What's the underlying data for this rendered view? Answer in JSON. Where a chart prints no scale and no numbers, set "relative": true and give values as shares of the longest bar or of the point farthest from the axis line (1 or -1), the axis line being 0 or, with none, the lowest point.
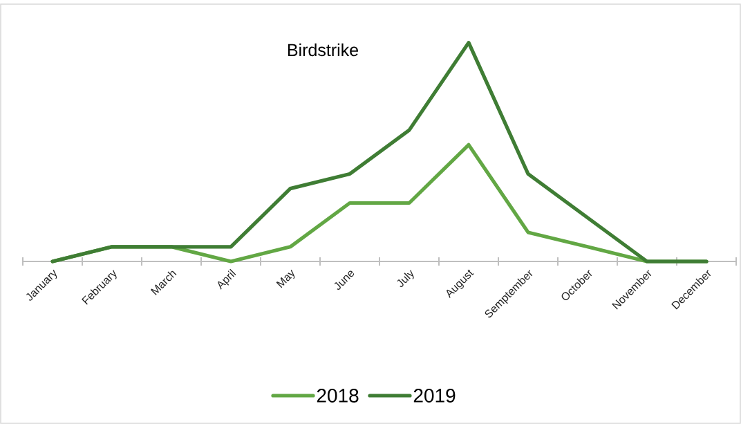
{
  "chart_data": {
    "type": "line",
    "title": "Birdstrike",
    "relative": true,
    "categories": [
      "January",
      "February",
      "March",
      "April",
      "May",
      "June",
      "July",
      "August",
      "Semptember",
      "October",
      "November",
      "December"
    ],
    "series": [
      {
        "name": "2018",
        "color": "#62a744",
        "values": [
          0,
          0.067,
          0.067,
          0,
          0.067,
          0.267,
          0.267,
          0.533,
          0.133,
          0.067,
          0,
          0
        ]
      },
      {
        "name": "2019",
        "color": "#3f7d34",
        "values": [
          0,
          0.067,
          0.067,
          0.067,
          0.333,
          0.4,
          0.6,
          1,
          0.4,
          0.2,
          0,
          0
        ]
      }
    ],
    "legend": "bottom",
    "grid": false,
    "marker": "none",
    "line_style": "solid"
  }
}
